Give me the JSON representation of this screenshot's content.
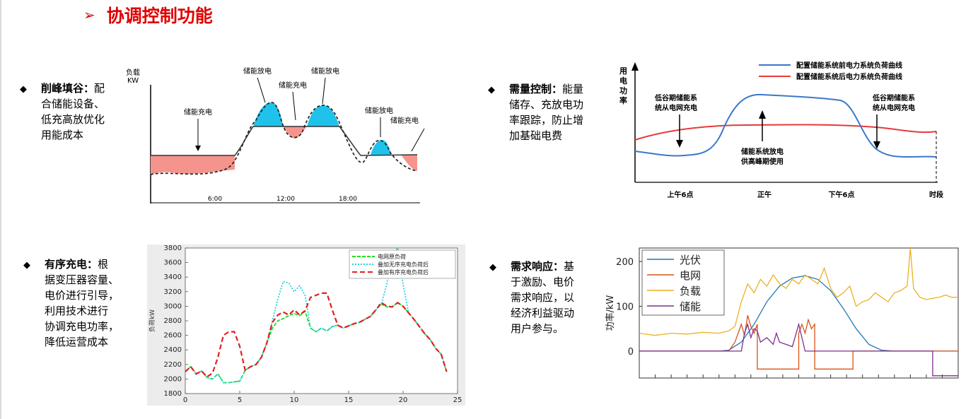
{
  "title": "协调控制功能",
  "bullets": [
    {
      "name": "削峰填谷",
      "rest": "配",
      "lines": [
        "合储能设备、",
        "低充高放优化",
        "用能成本"
      ]
    },
    {
      "name": "需量控制",
      "rest": "能量",
      "lines": [
        "储存、充放电功",
        "率跟踪，防止增",
        "加基础电费"
      ]
    },
    {
      "name": "有序充电",
      "rest": "根",
      "lines": [
        "据变压器容量、",
        "电价进行引导，",
        "利用技术进行",
        "协调充电功率，",
        "降低运营成本"
      ]
    },
    {
      "name": "需求响应",
      "rest": "基",
      "lines": [
        "于激励、电价",
        "需求响应，以",
        "经济利益驱动",
        "用户参与。"
      ]
    }
  ],
  "chart1": {
    "ylabel1": "负载",
    "ylabel2": "KW",
    "ticks": [
      "6:00",
      "12:00",
      "18:00"
    ],
    "labels": [
      "储能充电",
      "储能放电",
      "储能充电",
      "储能放电",
      "储能放电",
      "储能充电"
    ]
  },
  "chart2": {
    "ylabel": [
      "用",
      "电",
      "功",
      "率"
    ],
    "legend": [
      "配置储能系统前电力系统负荷曲线",
      "配置储能系统后电力系统负荷曲线"
    ],
    "xticks": [
      "上午6点",
      "正午",
      "下午6点",
      "时段"
    ],
    "ann_left": [
      "低谷期储能系",
      "统从电网充电"
    ],
    "ann_right": [
      "低谷期储能系",
      "统从电网充电"
    ],
    "ann_mid": [
      "储能系统放电",
      "供高峰期使用"
    ],
    "colors": {
      "before": "#3b78c8",
      "after": "#e8393a"
    }
  },
  "chart_data": [
    {
      "type": "line",
      "xlabel": "",
      "ylabel": "负荷kW",
      "xlim": [
        0,
        25
      ],
      "ylim": [
        1800,
        3800
      ],
      "xticks": [
        0,
        5,
        10,
        15,
        20,
        25
      ],
      "yticks": [
        1800,
        2000,
        2200,
        2400,
        2600,
        2800,
        3000,
        3200,
        3400,
        3600,
        3800
      ],
      "legend_position": "top-right",
      "series": [
        {
          "name": "电网原负荷",
          "color": "#22dd22",
          "x": [
            0,
            0.5,
            1,
            1.5,
            2,
            2.5,
            3,
            3.5,
            4,
            4.5,
            5,
            5.5,
            6,
            6.5,
            7,
            7.5,
            8,
            8.5,
            9,
            9.5,
            10,
            10.5,
            11,
            11.5,
            12,
            12.5,
            13,
            13.5,
            14,
            14.5,
            15,
            15.5,
            16,
            16.5,
            17,
            17.5,
            18,
            18.5,
            19,
            19.5,
            20,
            20.5,
            21,
            21.5,
            22,
            22.5,
            23,
            23.5,
            24
          ],
          "values": [
            2100,
            2170,
            2070,
            2110,
            2020,
            2000,
            2070,
            1950,
            1950,
            1960,
            1970,
            2120,
            2170,
            2200,
            2300,
            2500,
            2700,
            2800,
            2830,
            2870,
            2900,
            2870,
            2930,
            2700,
            2650,
            2700,
            2660,
            2720,
            2740,
            2700,
            2730,
            2760,
            2780,
            2820,
            2860,
            2950,
            3030,
            2990,
            2990,
            3050,
            3000,
            2910,
            2820,
            2720,
            2620,
            2540,
            2420,
            2340,
            2100
          ]
        },
        {
          "name": "叠加无序充电负荷后",
          "color": "#22d4e0",
          "x": [
            0,
            0.5,
            1,
            1.5,
            2,
            2.5,
            3,
            3.5,
            4,
            4.5,
            5,
            5.5,
            6,
            6.5,
            7,
            7.5,
            8,
            8.5,
            9,
            9.5,
            10,
            10.5,
            11,
            11.5,
            12,
            12.5,
            13,
            13.5,
            14,
            14.5,
            15,
            15.5,
            16,
            16.5,
            17,
            17.5,
            18,
            18.5,
            19,
            19.5,
            20,
            20.5,
            21,
            21.5,
            22,
            22.5,
            23,
            23.5,
            24
          ],
          "values": [
            2100,
            2170,
            2070,
            2110,
            2020,
            2000,
            2070,
            1950,
            1950,
            1960,
            1970,
            2120,
            2170,
            2200,
            2300,
            2500,
            2800,
            3100,
            3340,
            3320,
            3200,
            3280,
            3150,
            2700,
            2650,
            2700,
            2660,
            2720,
            2740,
            2700,
            2730,
            2760,
            2780,
            2820,
            2860,
            2950,
            3030,
            3300,
            3700,
            3850,
            3300,
            2910,
            2820,
            2720,
            2620,
            2540,
            2420,
            2340,
            2100
          ]
        },
        {
          "name": "叠加有序充电负荷后",
          "color": "#e21f1f",
          "x": [
            0,
            0.5,
            1,
            1.5,
            2,
            2.5,
            3,
            3.5,
            4,
            4.5,
            5,
            5.5,
            6,
            6.5,
            7,
            7.5,
            8,
            8.5,
            9,
            9.5,
            10,
            10.5,
            11,
            11.5,
            12,
            12.5,
            13,
            13.5,
            14,
            14.5,
            15,
            15.5,
            16,
            16.5,
            17,
            17.5,
            18,
            18.5,
            19,
            19.5,
            20,
            20.5,
            21,
            21.5,
            22,
            22.5,
            23,
            23.5,
            24
          ],
          "values": [
            2100,
            2170,
            2070,
            2110,
            2030,
            2080,
            2300,
            2600,
            2650,
            2650,
            2450,
            2120,
            2170,
            2200,
            2300,
            2500,
            2780,
            2880,
            2920,
            2880,
            2950,
            2880,
            2940,
            3120,
            3150,
            3180,
            3180,
            2950,
            2740,
            2700,
            2730,
            2760,
            2780,
            2820,
            2860,
            2950,
            3050,
            3000,
            2990,
            3050,
            3000,
            2910,
            2820,
            2720,
            2620,
            2540,
            2420,
            2340,
            2100
          ]
        }
      ]
    },
    {
      "type": "line",
      "xlabel": "",
      "ylabel": "功率/kW",
      "xlim": [
        0,
        100
      ],
      "ylim": [
        -60,
        230
      ],
      "yticks": [
        0,
        100,
        200
      ],
      "legend_position": "top-left",
      "series": [
        {
          "name": "光伏",
          "color": "#1f77b4",
          "x": [
            0,
            10,
            20,
            25,
            28,
            32,
            36,
            40,
            44,
            48,
            52,
            56,
            60,
            64,
            68,
            72,
            76,
            80,
            90,
            100
          ],
          "values": [
            0,
            0,
            0,
            0,
            2,
            20,
            60,
            110,
            145,
            163,
            168,
            160,
            135,
            95,
            50,
            15,
            2,
            0,
            0,
            0
          ]
        },
        {
          "name": "电网",
          "color": "#d95319",
          "x": [
            0,
            28,
            30,
            32,
            33,
            34,
            35,
            36,
            37,
            37,
            50,
            50,
            51,
            52,
            53,
            54,
            55,
            55,
            67,
            67,
            70,
            100
          ],
          "values": [
            0,
            0,
            20,
            60,
            35,
            80,
            55,
            40,
            60,
            -40,
            -40,
            40,
            60,
            40,
            70,
            50,
            60,
            -40,
            -40,
            0,
            0,
            0
          ]
        },
        {
          "name": "负载",
          "color": "#edb120",
          "x": [
            0,
            5,
            10,
            15,
            20,
            25,
            28,
            30,
            32,
            34,
            36,
            38,
            40,
            42,
            44,
            46,
            48,
            50,
            52,
            54,
            56,
            58,
            60,
            62,
            64,
            66,
            68,
            70,
            72,
            74,
            76,
            78,
            80,
            82,
            84,
            85,
            86,
            88,
            90,
            92,
            94,
            96,
            98,
            100
          ],
          "values": [
            40,
            35,
            40,
            38,
            42,
            40,
            45,
            55,
            110,
            150,
            130,
            160,
            145,
            170,
            150,
            140,
            160,
            150,
            170,
            160,
            150,
            185,
            140,
            120,
            130,
            145,
            100,
            110,
            115,
            130,
            120,
            110,
            130,
            135,
            145,
            230,
            140,
            120,
            115,
            118,
            120,
            125,
            120,
            120
          ]
        },
        {
          "name": "储能",
          "color": "#7e2f8e",
          "x": [
            0,
            30,
            32,
            33,
            34,
            35,
            36,
            37,
            38,
            40,
            42,
            43,
            44,
            46,
            48,
            50,
            52,
            54,
            55,
            56,
            70,
            90,
            92,
            92,
            100
          ],
          "values": [
            0,
            0,
            0,
            40,
            60,
            30,
            50,
            45,
            20,
            30,
            15,
            40,
            20,
            15,
            10,
            60,
            0,
            0,
            0,
            0,
            0,
            0,
            0,
            -55,
            -55
          ]
        }
      ]
    }
  ]
}
